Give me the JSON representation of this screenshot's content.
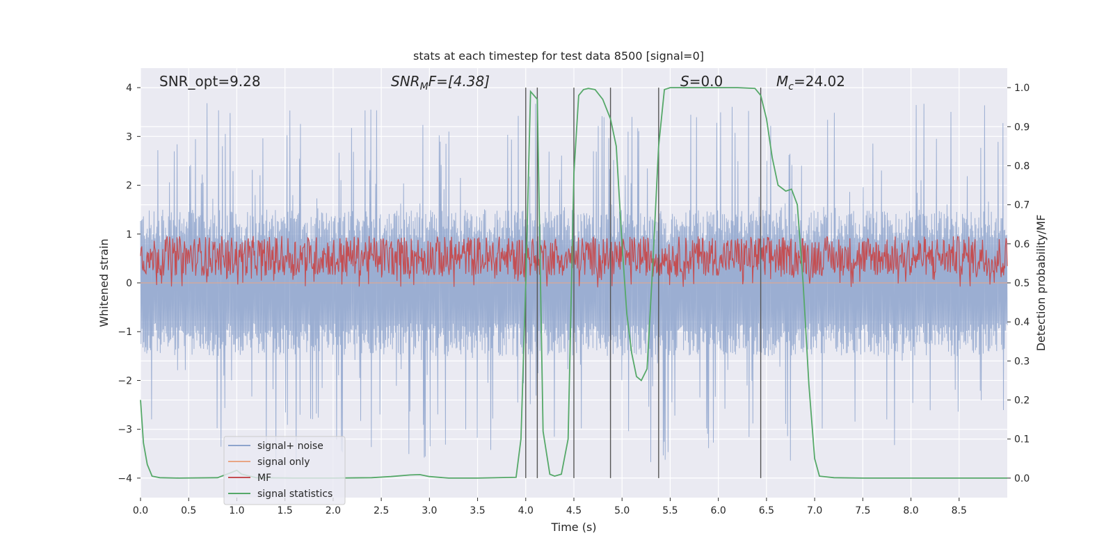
{
  "chart_data": {
    "type": "line",
    "title": "stats at each timestep for test data 8500 [signal=0]",
    "xlabel": "Time (s)",
    "ylabel": "Whitened strain",
    "y2label": "Detection probability/MF",
    "xlim": [
      0,
      9
    ],
    "ylim": [
      -4.4,
      4.4
    ],
    "y2lim": [
      -0.05,
      1.05
    ],
    "xticks": [
      "0.0",
      "0.5",
      "1.0",
      "1.5",
      "2.0",
      "2.5",
      "3.0",
      "3.5",
      "4.0",
      "4.5",
      "5.0",
      "5.5",
      "6.0",
      "6.5",
      "7.0",
      "7.5",
      "8.0",
      "8.5"
    ],
    "xtick_values": [
      0,
      0.5,
      1,
      1.5,
      2,
      2.5,
      3,
      3.5,
      4,
      4.5,
      5,
      5.5,
      6,
      6.5,
      7,
      7.5,
      8,
      8.5
    ],
    "yticks": [
      "−4",
      "−3",
      "−2",
      "−1",
      "0",
      "1",
      "2",
      "3",
      "4"
    ],
    "ytick_values": [
      -4,
      -3,
      -2,
      -1,
      0,
      1,
      2,
      3,
      4
    ],
    "y2ticks": [
      "0.0",
      "0.1",
      "0.2",
      "0.3",
      "0.4",
      "0.5",
      "0.6",
      "0.7",
      "0.8",
      "0.9",
      "1.0"
    ],
    "y2tick_values": [
      0,
      0.1,
      0.2,
      0.3,
      0.4,
      0.5,
      0.6,
      0.7,
      0.8,
      0.9,
      1.0
    ],
    "grid": true,
    "legend_position": "lower-left",
    "annotations": {
      "snr_opt": "SNR_opt=9.28",
      "snr_mf_var": "SNR",
      "snr_mf_sub": "M",
      "snr_mf_rest": "F=[4.38]",
      "s_var": "S",
      "s_rest": "=0.0",
      "mc_var": "M",
      "mc_sub": "c",
      "mc_rest": "=24.02"
    },
    "event_lines_x": [
      4.0,
      4.12,
      4.5,
      4.88,
      5.38,
      6.44
    ],
    "series": [
      {
        "name": "signal+ noise",
        "color": "#8da3cc",
        "kind": "noise",
        "amplitude_band": 1.5,
        "amplitude_peak": 3.7
      },
      {
        "name": "signal only",
        "color": "#e8a584",
        "kind": "flat",
        "values_note": "0"
      },
      {
        "name": "MF",
        "color": "#c44e52",
        "kind": "noise-mf",
        "y2_center": 0.55,
        "y2_band": [
          0.5,
          0.62
        ]
      },
      {
        "name": "signal statistics",
        "color": "#55a868",
        "x": [
          0.0,
          0.03,
          0.07,
          0.12,
          0.2,
          0.4,
          0.8,
          0.95,
          1.0,
          1.05,
          1.2,
          1.6,
          2.0,
          2.4,
          2.6,
          2.8,
          2.9,
          3.0,
          3.2,
          3.5,
          3.9,
          3.95,
          4.0,
          4.05,
          4.12,
          4.18,
          4.25,
          4.3,
          4.37,
          4.44,
          4.5,
          4.55,
          4.6,
          4.65,
          4.72,
          4.8,
          4.88,
          4.94,
          5.0,
          5.05,
          5.1,
          5.15,
          5.2,
          5.26,
          5.32,
          5.38,
          5.44,
          5.5,
          5.6,
          5.8,
          6.0,
          6.2,
          6.38,
          6.44,
          6.5,
          6.56,
          6.62,
          6.7,
          6.76,
          6.82,
          6.88,
          6.94,
          7.0,
          7.05,
          7.2,
          7.5,
          8.0,
          8.5,
          9.0
        ],
        "values": [
          0.2,
          0.09,
          0.035,
          0.005,
          0.001,
          0.0,
          0.001,
          0.015,
          0.02,
          0.01,
          0.001,
          0.0,
          0.0,
          0.001,
          0.004,
          0.008,
          0.009,
          0.004,
          0.0,
          0.0,
          0.002,
          0.1,
          0.5,
          0.99,
          0.97,
          0.12,
          0.01,
          0.005,
          0.01,
          0.1,
          0.78,
          0.98,
          0.995,
          0.998,
          0.995,
          0.97,
          0.92,
          0.85,
          0.6,
          0.42,
          0.32,
          0.26,
          0.25,
          0.28,
          0.55,
          0.85,
          0.995,
          1.0,
          1.0,
          1.0,
          1.0,
          1.0,
          0.998,
          0.98,
          0.92,
          0.82,
          0.75,
          0.735,
          0.74,
          0.7,
          0.5,
          0.24,
          0.05,
          0.005,
          0.001,
          0.0,
          0.0,
          0.0,
          0.0
        ]
      }
    ]
  }
}
